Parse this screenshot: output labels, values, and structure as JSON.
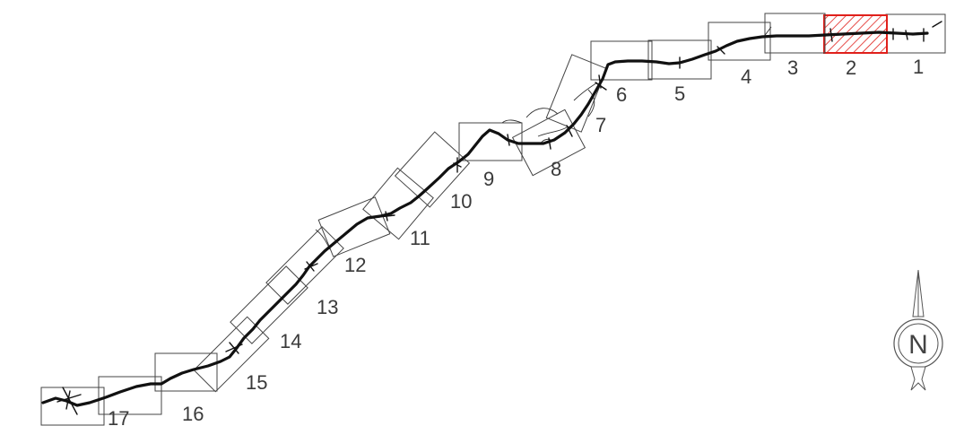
{
  "map": {
    "sheets": [
      {
        "number": "1"
      },
      {
        "number": "2",
        "selected": true
      },
      {
        "number": "3"
      },
      {
        "number": "4"
      },
      {
        "number": "5"
      },
      {
        "number": "6"
      },
      {
        "number": "7"
      },
      {
        "number": "8"
      },
      {
        "number": "9"
      },
      {
        "number": "10"
      },
      {
        "number": "11"
      },
      {
        "number": "12"
      },
      {
        "number": "13"
      },
      {
        "number": "14"
      },
      {
        "number": "15"
      },
      {
        "number": "16"
      },
      {
        "number": "17"
      }
    ],
    "highlight_color": "#e0201b",
    "route_color": "#111111",
    "frame_color": "#444444",
    "label_color": "#3a3a3a"
  },
  "north_arrow": {
    "letter": "N",
    "icon": "north-arrow-icon"
  }
}
